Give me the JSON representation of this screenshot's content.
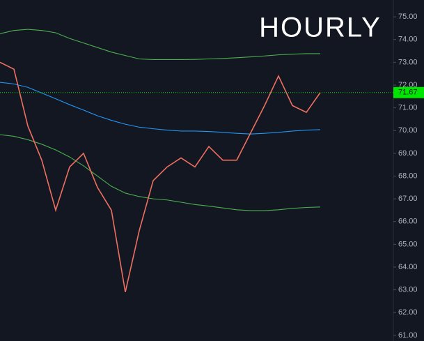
{
  "chart_data": {
    "type": "line",
    "title": "HOURLY",
    "series": [
      {
        "color": "#4caf50",
        "values": [
          74.26,
          74.4,
          74.45,
          74.4,
          74.3,
          74.05,
          73.85,
          73.65,
          73.45,
          73.3,
          73.15,
          73.12,
          73.12,
          73.12,
          73.13,
          73.15,
          73.17,
          73.2,
          73.24,
          73.28,
          73.33,
          73.36,
          73.38,
          73.38
        ]
      },
      {
        "color": "#4caf50",
        "values": [
          69.82,
          69.75,
          69.6,
          69.4,
          69.15,
          68.84,
          68.45,
          68.0,
          67.55,
          67.25,
          67.1,
          67.0,
          66.95,
          66.85,
          66.75,
          66.68,
          66.6,
          66.52,
          66.48,
          66.48,
          66.52,
          66.58,
          66.62,
          66.64
        ]
      },
      {
        "color": "#2196f3",
        "values": [
          72.12,
          72.05,
          71.9,
          71.65,
          71.4,
          71.14,
          70.9,
          70.65,
          70.45,
          70.28,
          70.15,
          70.08,
          70.02,
          69.98,
          69.98,
          69.96,
          69.92,
          69.88,
          69.85,
          69.88,
          69.92,
          69.98,
          70.02,
          70.04
        ]
      },
      {
        "color": "#ef6f60",
        "values": [
          73.0,
          72.7,
          70.2,
          68.7,
          66.5,
          68.4,
          69.0,
          67.5,
          66.5,
          62.9,
          65.6,
          67.8,
          68.4,
          68.8,
          68.4,
          69.3,
          68.7,
          68.7,
          69.9,
          71.1,
          72.4,
          71.1,
          70.8,
          71.67
        ]
      }
    ],
    "current_price": 71.67,
    "current_price_color": "#00e600",
    "ylim": [
      60.75,
      75.74
    ],
    "yticks": [
      {
        "value": 61,
        "label": "61.00"
      },
      {
        "value": 62,
        "label": "62.00"
      },
      {
        "value": 63,
        "label": "63.00"
      },
      {
        "value": 64,
        "label": "64.00"
      },
      {
        "value": 65,
        "label": "65.00"
      },
      {
        "value": 66,
        "label": "66.00"
      },
      {
        "value": 67,
        "label": "67.00"
      },
      {
        "value": 68,
        "label": "68.00"
      },
      {
        "value": 69,
        "label": "69.00"
      },
      {
        "value": 70,
        "label": "70.00"
      },
      {
        "value": 71,
        "label": "71.00"
      },
      {
        "value": 72,
        "label": "72.00"
      },
      {
        "value": 73,
        "label": "73.00"
      },
      {
        "value": 74,
        "label": "74.00"
      },
      {
        "value": 75,
        "label": "75.00"
      }
    ]
  }
}
